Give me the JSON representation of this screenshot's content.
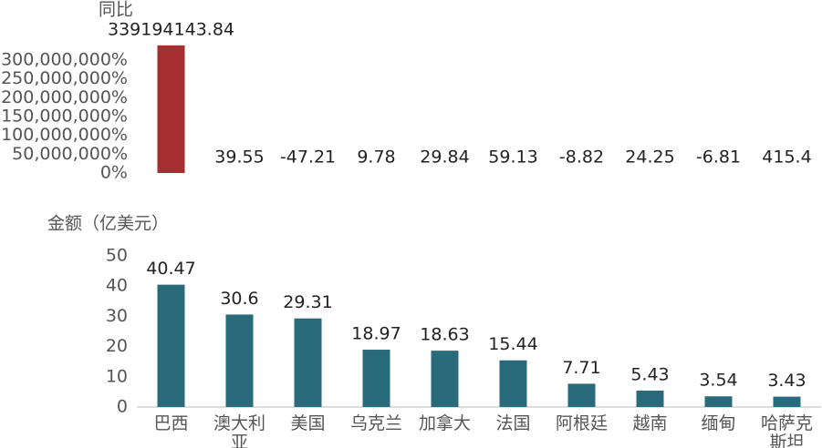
{
  "chart_data": [
    {
      "type": "bar",
      "title": "同比",
      "categories": [
        "巴西",
        "澳大利亚",
        "美国",
        "乌克兰",
        "加拿大",
        "法国",
        "阿根廷",
        "越南",
        "缅甸",
        "哈萨克斯坦"
      ],
      "values": [
        339194143.84,
        39.55,
        -47.21,
        9.78,
        29.84,
        59.13,
        -8.82,
        24.25,
        -6.81,
        415.4
      ],
      "color": "#a52f2f",
      "ylim": [
        0,
        340000000
      ],
      "yticks": [
        {
          "value": 0,
          "label": "0%"
        },
        {
          "value": 50000000,
          "label": "50,000,000%"
        },
        {
          "value": 100000000,
          "label": "100,000,000%"
        },
        {
          "value": 150000000,
          "label": "150,000,000%"
        },
        {
          "value": 200000000,
          "label": "200,000,000%"
        },
        {
          "value": 250000000,
          "label": "250,000,000%"
        },
        {
          "value": 300000000,
          "label": "300,000,000%"
        }
      ]
    },
    {
      "type": "bar",
      "title": "金额（亿美元）",
      "categories": [
        "巴西",
        "澳大利亚",
        "美国",
        "乌克兰",
        "加拿大",
        "法国",
        "阿根廷",
        "越南",
        "缅甸",
        "哈萨克斯坦"
      ],
      "values": [
        40.47,
        30.6,
        29.31,
        18.97,
        18.63,
        15.44,
        7.71,
        5.43,
        3.54,
        3.43
      ],
      "color": "#2a6b7b",
      "ylim": [
        0,
        50
      ],
      "yticks": [
        0,
        10,
        20,
        30,
        40,
        50
      ]
    }
  ]
}
